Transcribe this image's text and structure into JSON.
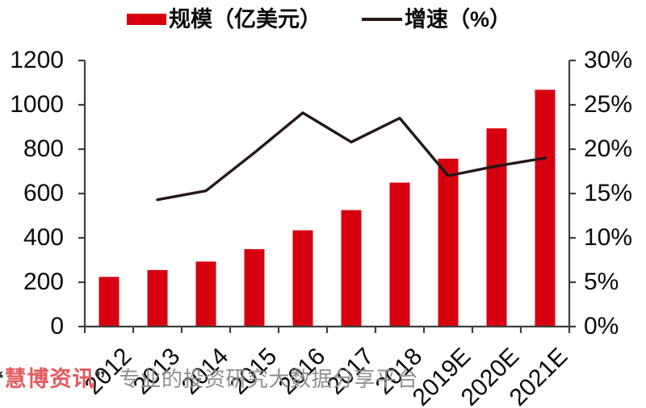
{
  "legend": {
    "bar_label": "规模（亿美元）",
    "line_label": "增速（%）"
  },
  "watermark": {
    "open_quote": "“",
    "brand": "慧博资讯",
    "close_quote": "”",
    "tagline": "专业的投资研究大数据分享平台"
  },
  "colors": {
    "background": "#ffffff",
    "bar": "#d7000f",
    "line": "#231815",
    "axis": "#3f3f3f",
    "tick_text": "#0a0a0a",
    "watermark_brand": "#e15b5f",
    "watermark_quote": "#3f3f3f",
    "watermark_tagline": "#8f8f8f"
  },
  "chart_data": {
    "type": "bar",
    "subtype": "combo bar + line, dual y-axis",
    "categories": [
      "2012",
      "2013",
      "2014",
      "2015",
      "2016",
      "2017",
      "2018",
      "2019E",
      "2020E",
      "2021E"
    ],
    "series": [
      {
        "name": "规模（亿美元）",
        "type": "bar",
        "axis": "left",
        "color": "#d7000f",
        "values": [
          224,
          255,
          293,
          349,
          434,
          525,
          649,
          757,
          894,
          1068
        ]
      },
      {
        "name": "增速（%）",
        "type": "line",
        "axis": "right",
        "color": "#231815",
        "values": [
          null,
          14.3,
          15.3,
          19.6,
          24.1,
          20.8,
          23.5,
          17.0,
          18.1,
          19.0
        ]
      }
    ],
    "left_axis": {
      "min": 0,
      "max": 1200,
      "step": 200,
      "ticks": [
        "0",
        "200",
        "400",
        "600",
        "800",
        "1000",
        "1200"
      ]
    },
    "right_axis": {
      "min": 0,
      "max": 30,
      "step": 5,
      "ticks": [
        "0%",
        "5%",
        "10%",
        "15%",
        "20%",
        "25%",
        "30%"
      ]
    },
    "x_tick_rotation": -45,
    "grid": false,
    "legend_position": "top-center"
  }
}
